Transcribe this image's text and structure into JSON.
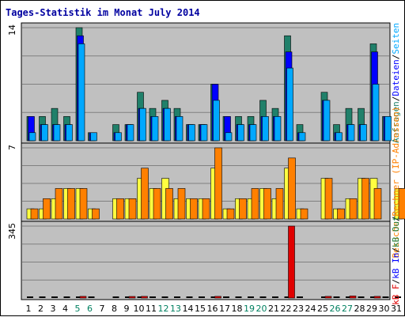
{
  "chart_data": {
    "type": "bar",
    "title": "Tages-Statistik im Monat July 2014",
    "days": [
      "1",
      "2",
      "3",
      "4",
      "5",
      "6",
      "7",
      "8",
      "9",
      "10",
      "11",
      "12",
      "13",
      "14",
      "15",
      "16",
      "17",
      "18",
      "19",
      "20",
      "21",
      "22",
      "23",
      "24",
      "25",
      "26",
      "27",
      "28",
      "29",
      "30",
      "31"
    ],
    "weekend_days": [
      "5",
      "6",
      "12",
      "13",
      "19",
      "20",
      "26",
      "27"
    ],
    "colors": {
      "background": "#c0c0c0",
      "title": "#0000a0",
      "grid": "#808080",
      "day_normal": "#000000",
      "day_weekend": "#008060",
      "anfragen": "#20806a",
      "dateien": "#0000ff",
      "seiten": "#00a8ff",
      "rechner": "#ffff40",
      "besuche": "#ff8000",
      "kb_out": "#208040",
      "kb_in": "#0000ff",
      "kb_f": "#e00000"
    },
    "panels": [
      {
        "id": "requests",
        "max_label": "14",
        "ymax": 14,
        "legend": [
          {
            "text": "Anfragen",
            "color": "#20806a"
          },
          {
            "text": "/",
            "color": "#000000"
          },
          {
            "text": "Dateien",
            "color": "#0000ff"
          },
          {
            "text": "/",
            "color": "#000000"
          },
          {
            "text": "Seiten",
            "color": "#00a8ff"
          }
        ],
        "series": [
          {
            "name": "Anfragen",
            "values": [
              3,
              3,
              4,
              3,
              14,
              1,
              0,
              2,
              2,
              6,
              4,
              5,
              4,
              2,
              2,
              7,
              3,
              3,
              3,
              5,
              4,
              13,
              2,
              0,
              6,
              2,
              4,
              4,
              12,
              3,
              0
            ]
          },
          {
            "name": "Dateien",
            "values": [
              3,
              2,
              2,
              2,
              13,
              1,
              0,
              1,
              2,
              4,
              3,
              4,
              3,
              2,
              2,
              7,
              3,
              2,
              2,
              3,
              3,
              11,
              1,
              0,
              5,
              1,
              2,
              2,
              11,
              3,
              0
            ]
          },
          {
            "name": "Seiten",
            "values": [
              1,
              2,
              2,
              2,
              12,
              1,
              0,
              1,
              2,
              4,
              3,
              4,
              3,
              2,
              2,
              5,
              1,
              2,
              2,
              3,
              3,
              9,
              1,
              0,
              5,
              1,
              2,
              2,
              7,
              3,
              0
            ]
          }
        ]
      },
      {
        "id": "visits",
        "max_label": "7",
        "ymax": 7,
        "legend": [
          {
            "text": "Besuche",
            "color": "#ff8000"
          },
          {
            "text": "/",
            "color": "#000000"
          },
          {
            "text": "Rechner (IP-Adressen)",
            "color": "#ff8000"
          }
        ],
        "series": [
          {
            "name": "Rechner",
            "values": [
              1,
              1,
              2,
              3,
              3,
              1,
              0,
              2,
              2,
              4,
              3,
              4,
              2,
              2,
              2,
              5,
              1,
              2,
              2,
              3,
              2,
              5,
              1,
              0,
              4,
              1,
              2,
              4,
              4,
              0,
              3
            ]
          },
          {
            "name": "Besuche",
            "values": [
              1,
              2,
              3,
              3,
              3,
              1,
              0,
              2,
              2,
              5,
              3,
              3,
              3,
              2,
              2,
              7,
              1,
              2,
              3,
              3,
              3,
              6,
              1,
              0,
              4,
              1,
              2,
              4,
              3,
              0,
              3
            ]
          }
        ]
      },
      {
        "id": "traffic",
        "max_label": "345",
        "ymax": 345,
        "legend": [
          {
            "text": "kB F",
            "color": "#e00000"
          },
          {
            "text": "/",
            "color": "#000000"
          },
          {
            "text": "kB In",
            "color": "#0000ff"
          },
          {
            "text": "/",
            "color": "#000000"
          },
          {
            "text": "kB Out",
            "color": "#208040"
          }
        ],
        "series": [
          {
            "name": "kB Out",
            "values": [
              2,
              2,
              2,
              2,
              2,
              2,
              0,
              2,
              2,
              2,
              2,
              2,
              2,
              2,
              2,
              2,
              2,
              2,
              2,
              2,
              2,
              2,
              2,
              0,
              2,
              2,
              2,
              2,
              2,
              2,
              2
            ]
          },
          {
            "name": "kB In",
            "values": [
              0,
              0,
              0,
              0,
              0,
              0,
              0,
              0,
              0,
              0,
              0,
              0,
              0,
              0,
              0,
              0,
              0,
              0,
              0,
              0,
              0,
              0,
              0,
              0,
              0,
              0,
              0,
              0,
              0,
              0,
              0
            ]
          },
          {
            "name": "kB F",
            "values": [
              2,
              2,
              2,
              2,
              8,
              2,
              0,
              2,
              6,
              8,
              2,
              2,
              2,
              2,
              2,
              8,
              2,
              2,
              2,
              2,
              2,
              345,
              2,
              0,
              8,
              2,
              10,
              2,
              8,
              2,
              2
            ]
          }
        ]
      }
    ]
  }
}
